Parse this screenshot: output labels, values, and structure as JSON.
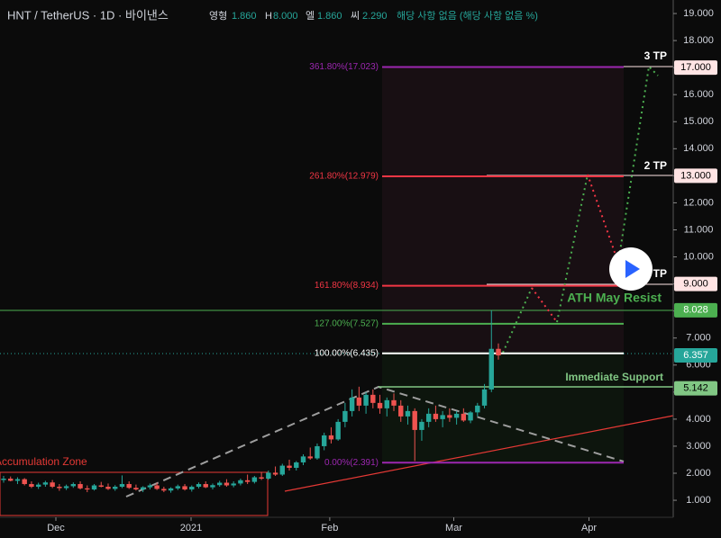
{
  "chart_data": {
    "type": "candlestick",
    "header": {
      "symbol": "HNT / TetherUS · 1D · 바이낸스",
      "o_label": "영형",
      "o": "1.860",
      "h_label": "H",
      "h": "8.000",
      "l_label": "엘",
      "l": "1.860",
      "c_label": "씨",
      "c": "2.290",
      "change": "해당 사항 없음 (해당 사항 없음 %)"
    },
    "ylim": [
      0.37,
      19.5
    ],
    "yticks": [
      {
        "value": 1,
        "label": "1.000"
      },
      {
        "value": 2,
        "label": "2.000"
      },
      {
        "value": 3,
        "label": "3.000"
      },
      {
        "value": 4,
        "label": "4.000"
      },
      {
        "value": 5,
        "label": "5.000"
      },
      {
        "value": 6,
        "label": "6.000"
      },
      {
        "value": 7,
        "label": "7.000"
      },
      {
        "value": 8,
        "label": "8.000"
      },
      {
        "value": 9,
        "label": "9.000"
      },
      {
        "value": 10,
        "label": "10.000"
      },
      {
        "value": 11,
        "label": "11.000"
      },
      {
        "value": 12,
        "label": "12.000"
      },
      {
        "value": 13,
        "label": "13.000"
      },
      {
        "value": 14,
        "label": "14.000"
      },
      {
        "value": 15,
        "label": "15.000"
      },
      {
        "value": 16,
        "label": "16.000"
      },
      {
        "value": 17,
        "label": "17.000"
      },
      {
        "value": 18,
        "label": "18.000"
      },
      {
        "value": 19,
        "label": "19.000"
      }
    ],
    "xticks": [
      {
        "value": 7.5,
        "label": "Dec"
      },
      {
        "value": 26.9,
        "label": "2021"
      },
      {
        "value": 46.8,
        "label": "Feb"
      },
      {
        "value": 64.6,
        "label": "Mar"
      },
      {
        "value": 84,
        "label": "Apr"
      }
    ],
    "up_color": "#26a69a",
    "down_color": "#ef5350",
    "candles": [
      [
        1.75,
        1.9,
        1.65,
        1.8
      ],
      [
        1.8,
        1.88,
        1.7,
        1.72
      ],
      [
        1.72,
        1.85,
        1.6,
        1.78
      ],
      [
        1.78,
        1.82,
        1.55,
        1.6
      ],
      [
        1.6,
        1.7,
        1.45,
        1.5
      ],
      [
        1.5,
        1.65,
        1.42,
        1.58
      ],
      [
        1.58,
        1.72,
        1.5,
        1.66
      ],
      [
        1.66,
        1.75,
        1.45,
        1.5
      ],
      [
        1.5,
        1.6,
        1.35,
        1.45
      ],
      [
        1.45,
        1.58,
        1.38,
        1.52
      ],
      [
        1.52,
        1.66,
        1.46,
        1.6
      ],
      [
        1.6,
        1.7,
        1.4,
        1.44
      ],
      [
        1.44,
        1.55,
        1.3,
        1.4
      ],
      [
        1.4,
        1.6,
        1.36,
        1.55
      ],
      [
        1.55,
        1.68,
        1.48,
        1.5
      ],
      [
        1.5,
        1.62,
        1.38,
        1.42
      ],
      [
        1.42,
        1.56,
        1.35,
        1.5
      ],
      [
        1.5,
        1.92,
        1.45,
        1.6
      ],
      [
        1.6,
        1.7,
        1.42,
        1.46
      ],
      [
        1.46,
        1.58,
        1.36,
        1.4
      ],
      [
        1.4,
        1.52,
        1.3,
        1.48
      ],
      [
        1.48,
        1.62,
        1.4,
        1.55
      ],
      [
        1.55,
        1.65,
        1.38,
        1.42
      ],
      [
        1.42,
        1.5,
        1.3,
        1.36
      ],
      [
        1.36,
        1.48,
        1.28,
        1.44
      ],
      [
        1.44,
        1.58,
        1.38,
        1.52
      ],
      [
        1.52,
        1.6,
        1.36,
        1.4
      ],
      [
        1.4,
        1.55,
        1.32,
        1.5
      ],
      [
        1.5,
        1.66,
        1.44,
        1.6
      ],
      [
        1.6,
        1.7,
        1.45,
        1.48
      ],
      [
        1.48,
        1.62,
        1.4,
        1.56
      ],
      [
        1.56,
        1.72,
        1.5,
        1.65
      ],
      [
        1.65,
        1.78,
        1.5,
        1.55
      ],
      [
        1.55,
        1.7,
        1.48,
        1.62
      ],
      [
        1.62,
        1.8,
        1.55,
        1.74
      ],
      [
        1.74,
        1.95,
        1.6,
        1.68
      ],
      [
        1.68,
        1.9,
        1.62,
        1.85
      ],
      [
        1.85,
        2.05,
        1.75,
        1.8
      ],
      [
        1.8,
        2.1,
        1.76,
        2.02
      ],
      [
        2.02,
        2.25,
        1.9,
        1.95
      ],
      [
        1.95,
        2.35,
        1.9,
        2.28
      ],
      [
        2.28,
        2.5,
        2.1,
        2.2
      ],
      [
        2.2,
        2.45,
        2.1,
        2.4
      ],
      [
        2.4,
        2.7,
        2.3,
        2.62
      ],
      [
        2.62,
        2.95,
        2.5,
        2.55
      ],
      [
        2.55,
        3.1,
        2.5,
        3.0
      ],
      [
        3.0,
        3.5,
        2.85,
        3.4
      ],
      [
        3.4,
        3.7,
        3.1,
        3.25
      ],
      [
        3.25,
        4.0,
        3.2,
        3.9
      ],
      [
        3.9,
        4.6,
        3.7,
        4.3
      ],
      [
        4.3,
        5.1,
        4.1,
        4.8
      ],
      [
        4.8,
        5.2,
        4.3,
        4.5
      ],
      [
        4.5,
        5.0,
        4.2,
        4.9
      ],
      [
        4.9,
        5.1,
        4.4,
        4.6
      ],
      [
        4.6,
        4.9,
        4.2,
        4.4
      ],
      [
        4.4,
        4.8,
        4.1,
        4.7
      ],
      [
        4.7,
        4.95,
        4.3,
        4.5
      ],
      [
        4.5,
        4.7,
        3.9,
        4.1
      ],
      [
        4.1,
        4.5,
        3.8,
        4.3
      ],
      [
        4.3,
        4.4,
        2.45,
        3.6
      ],
      [
        3.6,
        4.0,
        3.2,
        3.9
      ],
      [
        3.9,
        4.4,
        3.7,
        4.2
      ],
      [
        4.2,
        4.5,
        3.9,
        4.0
      ],
      [
        4.0,
        4.3,
        3.7,
        4.15
      ],
      [
        4.15,
        4.4,
        3.9,
        4.05
      ],
      [
        4.05,
        4.3,
        3.8,
        4.2
      ],
      [
        4.2,
        4.4,
        3.9,
        3.95
      ],
      [
        3.95,
        4.3,
        3.85,
        4.25
      ],
      [
        4.25,
        4.6,
        4.1,
        4.5
      ],
      [
        4.5,
        5.3,
        4.4,
        5.1
      ],
      [
        5.1,
        8.028,
        5.0,
        6.6
      ],
      [
        6.6,
        6.8,
        6.2,
        6.357
      ]
    ],
    "fib_levels": [
      {
        "label": "361.80%(17.023)",
        "value": 17.023,
        "color": "#9c27b0"
      },
      {
        "label": "261.80%(12.979)",
        "value": 12.979,
        "color": "#f23645"
      },
      {
        "label": "161.80%(8.934)",
        "value": 8.934,
        "color": "#f23645"
      },
      {
        "label": "127.00%(7.527)",
        "value": 7.527,
        "color": "#4caf50"
      },
      {
        "label": "100.00%(6.435)",
        "value": 6.435,
        "color": "#ffffff"
      },
      {
        "label": "0.00%(2.391)",
        "value": 2.391,
        "color": "#9c27b0"
      }
    ],
    "price_tags": [
      {
        "label": "17.000",
        "value": 17,
        "color": "#ffe4e4",
        "text_color": "#000000"
      },
      {
        "label": "13.000",
        "value": 13,
        "color": "#ffe4e4",
        "text_color": "#000000"
      },
      {
        "label": "9.000",
        "value": 9,
        "color": "#ffe4e4",
        "text_color": "#000000"
      },
      {
        "label": "8.028",
        "value": 8.028,
        "color": "#4caf50",
        "text_color": "#ffffff"
      },
      {
        "label": "6.357",
        "value": 6.357,
        "color": "#26a69a",
        "text_color": "#ffffff"
      },
      {
        "label": "5.142",
        "value": 5.142,
        "color": "#81c784",
        "text_color": "#000000"
      }
    ],
    "annotations": {
      "tp3": "3 TP",
      "tp2": "2 TP",
      "tp1": "TP",
      "ath": "ATH May Resist",
      "support": "Immediate Support",
      "zone": "Accumulation Zone"
    }
  }
}
